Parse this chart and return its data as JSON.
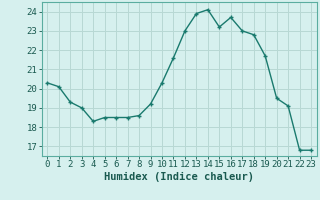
{
  "x": [
    0,
    1,
    2,
    3,
    4,
    5,
    6,
    7,
    8,
    9,
    10,
    11,
    12,
    13,
    14,
    15,
    16,
    17,
    18,
    19,
    20,
    21,
    22,
    23
  ],
  "y": [
    20.3,
    20.1,
    19.3,
    19.0,
    18.3,
    18.5,
    18.5,
    18.5,
    18.6,
    19.2,
    20.3,
    21.6,
    23.0,
    23.9,
    24.1,
    23.2,
    23.7,
    23.0,
    22.8,
    21.7,
    19.5,
    19.1,
    16.8,
    16.8
  ],
  "line_color": "#1a7a6e",
  "marker": "+",
  "marker_size": 3.5,
  "marker_lw": 1.0,
  "bg_color": "#d6f0ee",
  "grid_color": "#b8d8d4",
  "xlabel": "Humidex (Indice chaleur)",
  "ylabel_ticks": [
    17,
    18,
    19,
    20,
    21,
    22,
    23,
    24
  ],
  "xlim": [
    -0.5,
    23.5
  ],
  "ylim": [
    16.5,
    24.5
  ],
  "xlabel_fontsize": 7.5,
  "tick_fontsize": 6.5,
  "line_width": 1.0
}
